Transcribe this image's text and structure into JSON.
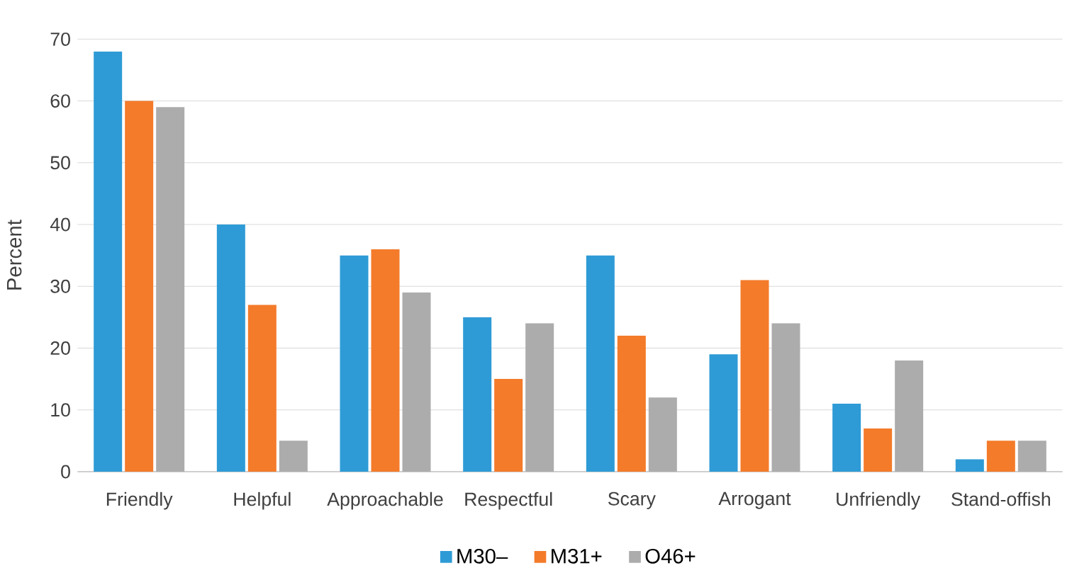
{
  "chart_data": {
    "type": "bar",
    "ylabel": "Percent",
    "categories": [
      "Friendly",
      "Helpful",
      "Approachable",
      "Respectful",
      "Scary",
      "Arrogant",
      "Unfriendly",
      "Stand-offish"
    ],
    "series": [
      {
        "name": "M30–",
        "color": "#2e9bd6",
        "values": [
          68,
          40,
          35,
          25,
          35,
          19,
          11,
          2
        ]
      },
      {
        "name": "M31+",
        "color": "#f47b2a",
        "values": [
          60,
          27,
          36,
          15,
          22,
          31,
          7,
          5
        ]
      },
      {
        "name": "O46+",
        "color": "#acacac",
        "values": [
          59,
          5,
          29,
          24,
          12,
          24,
          18,
          5
        ]
      }
    ],
    "ylim": [
      0,
      70
    ],
    "yticks": [
      0,
      10,
      20,
      30,
      40,
      50,
      60,
      70
    ],
    "grid": "y",
    "legend": "bottom"
  }
}
